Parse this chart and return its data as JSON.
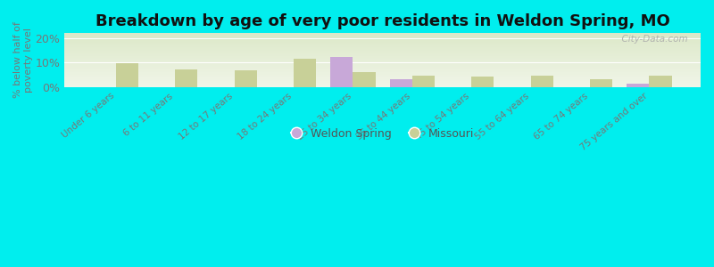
{
  "title": "Breakdown by age of very poor residents in Weldon Spring, MO",
  "ylabel": "% below half of\npoverty level",
  "background_color": "#00EEEE",
  "plot_bg_top": "#dce8c8",
  "plot_bg_bottom": "#f0f5e8",
  "categories": [
    "Under 6 years",
    "6 to 11 years",
    "12 to 17 years",
    "18 to 24 years",
    "25 to 34 years",
    "35 to 44 years",
    "45 to 54 years",
    "55 to 64 years",
    "65 to 74 years",
    "75 years and over"
  ],
  "weldon_spring": [
    0,
    0,
    0,
    0,
    12.2,
    3.2,
    0,
    0,
    0,
    1.2
  ],
  "missouri": [
    9.8,
    7.2,
    7.0,
    11.5,
    6.2,
    4.8,
    4.2,
    4.5,
    3.2,
    4.5
  ],
  "weldon_color": "#c8a8d8",
  "missouri_color": "#c8d098",
  "ylim": [
    0,
    22
  ],
  "yticks": [
    0,
    10,
    20
  ],
  "ytick_labels": [
    "0%",
    "10%",
    "20%"
  ],
  "bar_width": 0.38,
  "watermark": "  City-Data.com",
  "title_fontsize": 13,
  "legend_weldon": "Weldon Spring",
  "legend_missouri": "Missouri"
}
